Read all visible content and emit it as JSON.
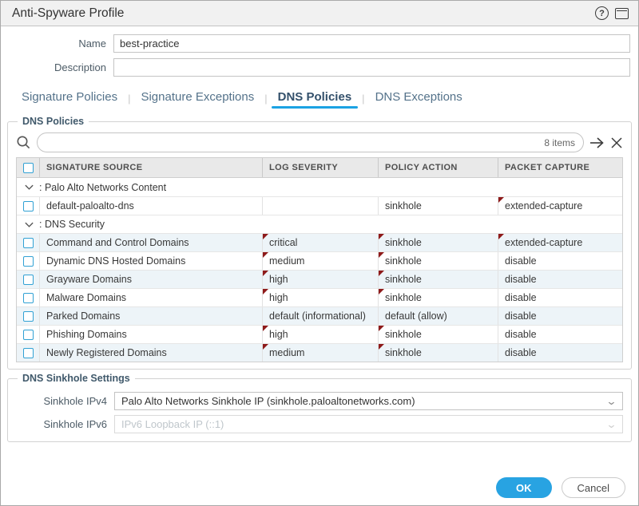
{
  "dialog": {
    "title": "Anti-Spyware Profile"
  },
  "form": {
    "name_label": "Name",
    "name_value": "best-practice",
    "description_label": "Description",
    "description_value": ""
  },
  "tabs": [
    {
      "label": "Signature Policies",
      "active": false
    },
    {
      "label": "Signature Exceptions",
      "active": false
    },
    {
      "label": "DNS Policies",
      "active": true
    },
    {
      "label": "DNS Exceptions",
      "active": false
    }
  ],
  "dns_policies": {
    "legend": "DNS Policies",
    "search": {
      "value": "",
      "items_count": "8 items"
    },
    "table": {
      "columns": [
        "SIGNATURE SOURCE",
        "LOG SEVERITY",
        "POLICY ACTION",
        "PACKET CAPTURE"
      ],
      "rows": [
        {
          "type": "group",
          "label": "Palo Alto Networks Content"
        },
        {
          "type": "data",
          "shaded": false,
          "source": "default-paloalto-dns",
          "severity": "",
          "severity_flag": false,
          "action": "sinkhole",
          "action_flag": false,
          "capture": "extended-capture",
          "capture_flag": true
        },
        {
          "type": "group",
          "label": "DNS Security"
        },
        {
          "type": "data",
          "shaded": true,
          "source": "Command and Control Domains",
          "severity": "critical",
          "severity_flag": true,
          "action": "sinkhole",
          "action_flag": true,
          "capture": "extended-capture",
          "capture_flag": true
        },
        {
          "type": "data",
          "shaded": false,
          "source": "Dynamic DNS Hosted Domains",
          "severity": "medium",
          "severity_flag": true,
          "action": "sinkhole",
          "action_flag": true,
          "capture": "disable",
          "capture_flag": false
        },
        {
          "type": "data",
          "shaded": true,
          "source": "Grayware Domains",
          "severity": "high",
          "severity_flag": true,
          "action": "sinkhole",
          "action_flag": true,
          "capture": "disable",
          "capture_flag": false
        },
        {
          "type": "data",
          "shaded": false,
          "source": "Malware Domains",
          "severity": "high",
          "severity_flag": true,
          "action": "sinkhole",
          "action_flag": true,
          "capture": "disable",
          "capture_flag": false
        },
        {
          "type": "data",
          "shaded": true,
          "source": "Parked Domains",
          "severity": "default (informational)",
          "severity_flag": false,
          "action": "default (allow)",
          "action_flag": false,
          "capture": "disable",
          "capture_flag": false
        },
        {
          "type": "data",
          "shaded": false,
          "source": "Phishing Domains",
          "severity": "high",
          "severity_flag": true,
          "action": "sinkhole",
          "action_flag": true,
          "capture": "disable",
          "capture_flag": false
        },
        {
          "type": "data",
          "shaded": true,
          "source": "Newly Registered Domains",
          "severity": "medium",
          "severity_flag": true,
          "action": "sinkhole",
          "action_flag": true,
          "capture": "disable",
          "capture_flag": false
        }
      ]
    }
  },
  "dns_sinkhole": {
    "legend": "DNS Sinkhole Settings",
    "ipv4_label": "Sinkhole IPv4",
    "ipv4_value": "Palo Alto Networks Sinkhole IP (sinkhole.paloaltonetworks.com)",
    "ipv6_label": "Sinkhole IPv6",
    "ipv6_value": "IPv6 Loopback IP (::1)"
  },
  "footer": {
    "ok_label": "OK",
    "cancel_label": "Cancel"
  },
  "colors": {
    "accent_blue": "#1ba2e3",
    "ok_button": "#28a3e2",
    "checkbox_border": "#31a1d4",
    "row_shaded": "#edf4f8",
    "flag_red": "#8e1a1a",
    "legend_text": "#40596b"
  }
}
